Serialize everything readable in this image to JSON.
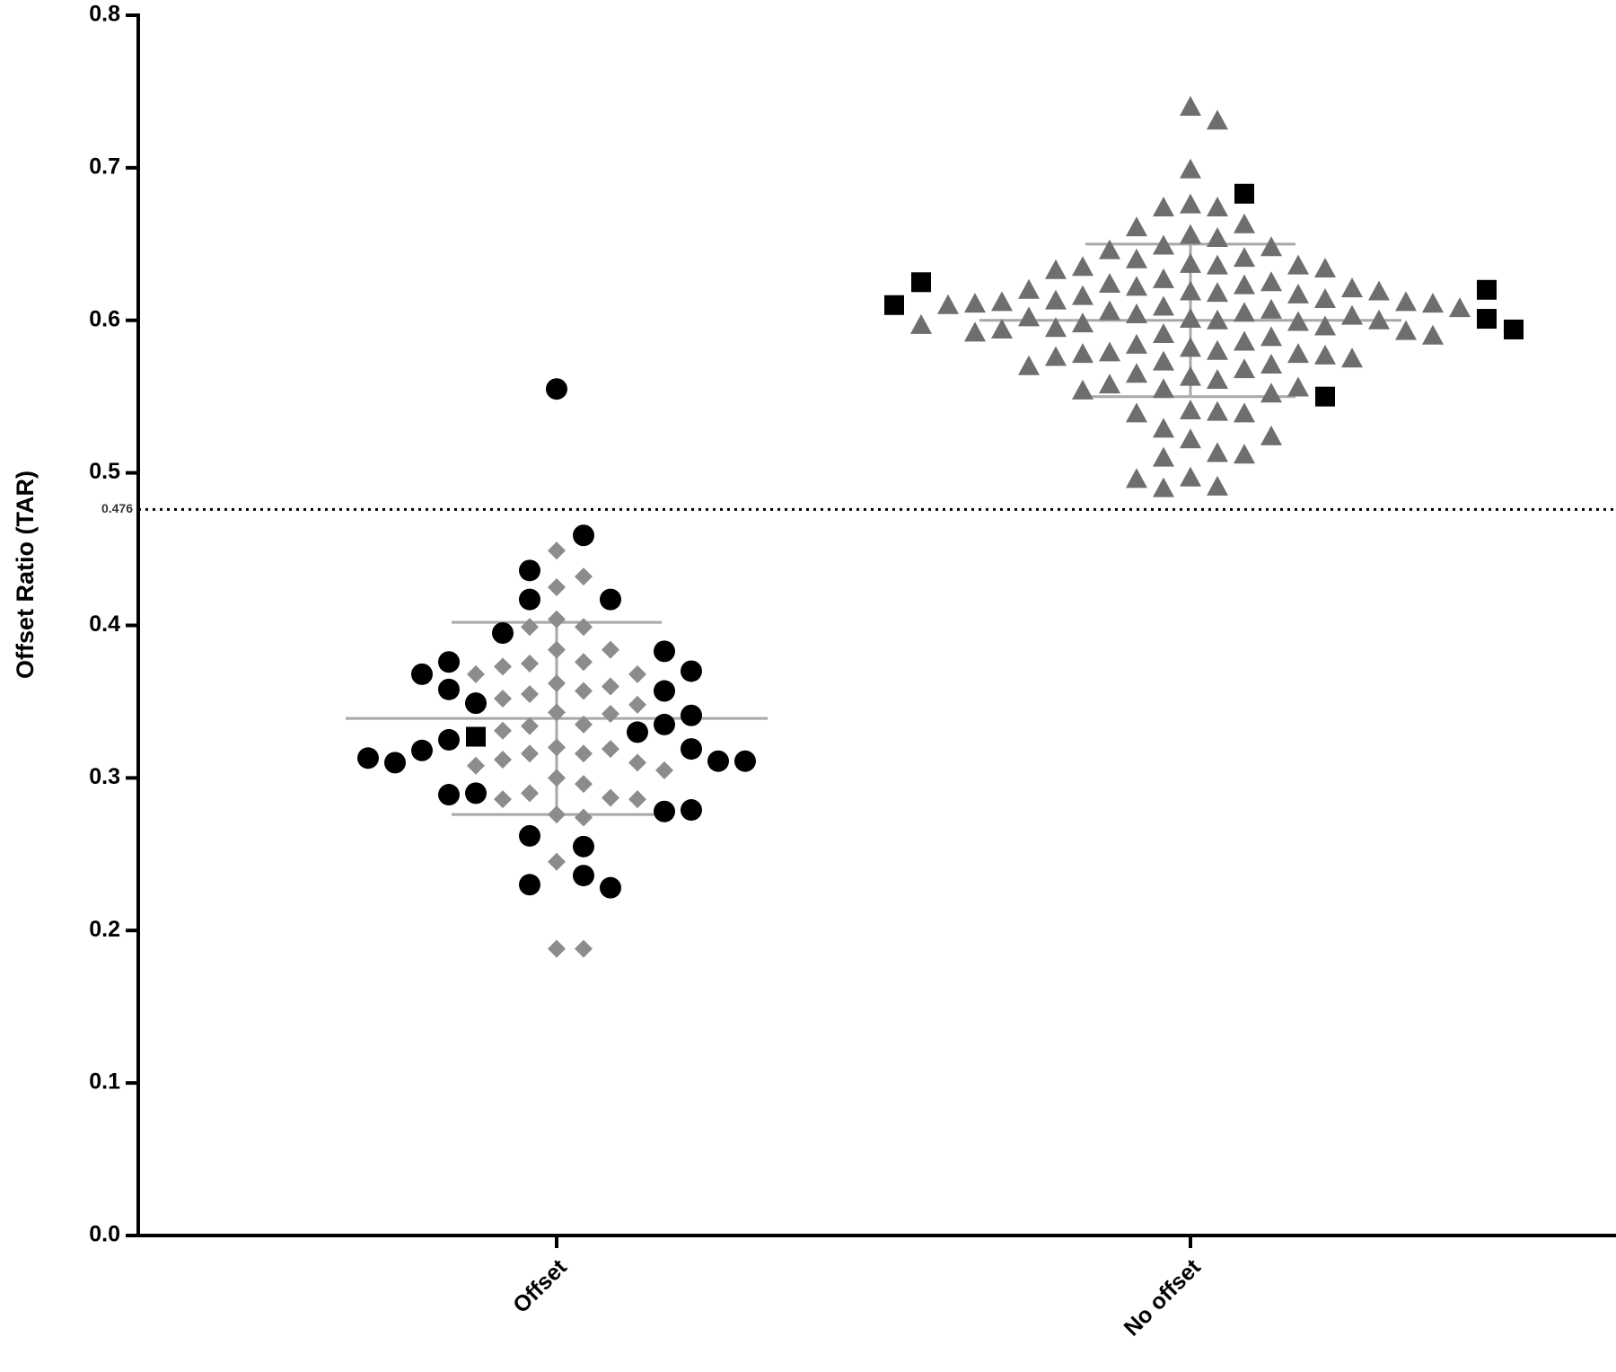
{
  "chart_data": {
    "type": "scatter",
    "y_label": "Offset Ratio  (TAR)",
    "categories": [
      "Offset",
      "No offset"
    ],
    "ylim": [
      0,
      0.8
    ],
    "yticks": [
      {
        "value": 0,
        "label": "0.0"
      },
      0.1,
      0.2,
      0.3,
      0.4,
      0.5,
      0.6,
      0.7,
      0.8
    ],
    "reference_line": {
      "value": 0.476,
      "label": "0.476"
    },
    "summary": [
      {
        "mean": 0.339,
        "sd": 0.063
      },
      {
        "mean": 0.6,
        "sd": 0.05
      }
    ],
    "series": [
      {
        "x": "Offset",
        "marker": "diamond",
        "color": "#8c8c8c",
        "values": [
          0.449,
          0.432,
          0.425,
          0.404,
          0.399,
          0.399,
          0.384,
          0.384,
          0.376,
          0.375,
          0.373,
          0.368,
          0.368,
          0.362,
          0.36,
          0.357,
          0.355,
          0.352,
          0.348,
          0.343,
          0.342,
          0.335,
          0.334,
          0.331,
          0.32,
          0.319,
          0.316,
          0.316,
          0.312,
          0.31,
          0.308,
          0.305,
          0.3,
          0.296,
          0.29,
          0.287,
          0.286,
          0.286,
          0.276,
          0.274,
          0.245,
          0.188,
          0.188
        ]
      },
      {
        "x": "Offset",
        "marker": "circle",
        "color": "#000000",
        "values": [
          0.555,
          0.459,
          0.436,
          0.417,
          0.417,
          0.395,
          0.383,
          0.376,
          0.37,
          0.368,
          0.357,
          0.358,
          0.349,
          0.341,
          0.335,
          0.33,
          0.325,
          0.319,
          0.318,
          0.311,
          0.31,
          0.311,
          0.313,
          0.29,
          0.289,
          0.278,
          0.279,
          0.262,
          0.255,
          0.236,
          0.23,
          0.228
        ]
      },
      {
        "x": "Offset",
        "marker": "square",
        "color": "#000000",
        "values": [
          0.327
        ]
      },
      {
        "x": "No offset",
        "marker": "triangle",
        "color": "#6e6e6e",
        "values": [
          0.74,
          0.731,
          0.699,
          0.676,
          0.674,
          0.674,
          0.663,
          0.661,
          0.656,
          0.654,
          0.649,
          0.648,
          0.646,
          0.641,
          0.64,
          0.637,
          0.636,
          0.636,
          0.635,
          0.634,
          0.633,
          0.627,
          0.625,
          0.624,
          0.623,
          0.622,
          0.621,
          0.62,
          0.619,
          0.619,
          0.618,
          0.617,
          0.616,
          0.614,
          0.613,
          0.612,
          0.612,
          0.611,
          0.611,
          0.61,
          0.609,
          0.608,
          0.607,
          0.606,
          0.605,
          0.604,
          0.603,
          0.602,
          0.601,
          0.6,
          0.6,
          0.599,
          0.598,
          0.597,
          0.596,
          0.595,
          0.594,
          0.593,
          0.592,
          0.591,
          0.59,
          0.589,
          0.586,
          0.584,
          0.582,
          0.58,
          0.579,
          0.578,
          0.578,
          0.577,
          0.576,
          0.575,
          0.573,
          0.571,
          0.57,
          0.568,
          0.565,
          0.563,
          0.561,
          0.558,
          0.556,
          0.555,
          0.554,
          0.552,
          0.541,
          0.54,
          0.539,
          0.539,
          0.529,
          0.524,
          0.522,
          0.513,
          0.512,
          0.51,
          0.497,
          0.496,
          0.491,
          0.49
        ]
      },
      {
        "x": "No offset",
        "marker": "square",
        "color": "#000000",
        "values": [
          0.683,
          0.625,
          0.62,
          0.61,
          0.601,
          0.594,
          0.55
        ]
      }
    ]
  }
}
